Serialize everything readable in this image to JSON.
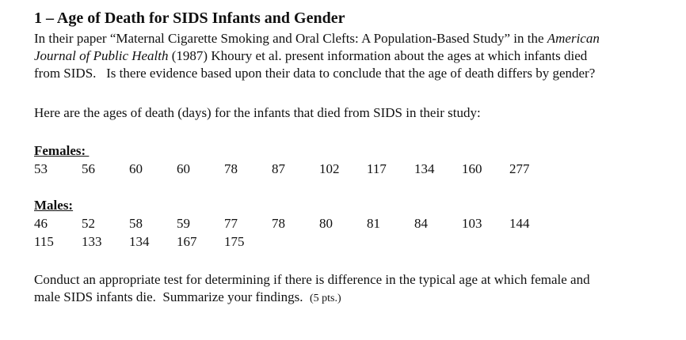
{
  "page": {
    "title": "1 – Age of Death for SIDS Infants and Gender",
    "intro": {
      "before_journal": "In their paper “Maternal Cigarette Smoking and Oral Clefts: A Population-Based Study” in the ",
      "journal": "American Journal of Public Health",
      "after_journal": " (1987) Khoury et al. present information about the ages at which infants died from SIDS.   Is there evidence based upon their data to conclude that the age of death differs by gender?"
    },
    "data_intro": "Here are the ages of death (days) for the infants that died from SIDS in their study:",
    "females": {
      "label": "Females: ",
      "ages": [
        53,
        56,
        60,
        60,
        78,
        87,
        102,
        117,
        134,
        160,
        277
      ]
    },
    "males": {
      "label": "Males:",
      "ages_row1": [
        46,
        52,
        58,
        59,
        77,
        78,
        80,
        81,
        84,
        103,
        144
      ],
      "ages_row2": [
        115,
        133,
        134,
        167,
        175
      ]
    },
    "task": {
      "text": "Conduct an appropriate test for determining if there is difference in the typical age at which female and male SIDS infants die.  Summarize your findings.  ",
      "points_note": "(5 pts.)"
    }
  }
}
